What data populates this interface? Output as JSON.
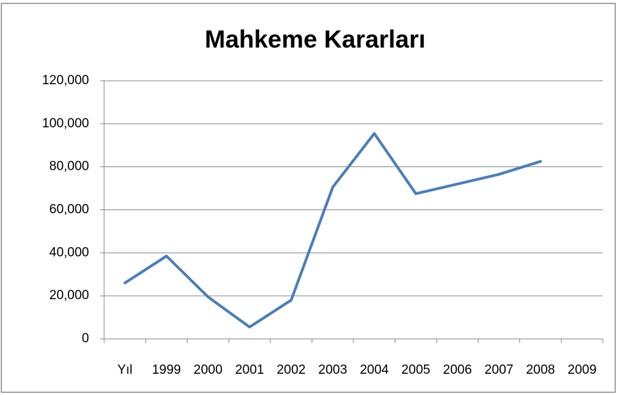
{
  "chart_data": {
    "type": "line",
    "title": "Mahkeme Kararları",
    "categories": [
      "Yıl",
      "1999",
      "2000",
      "2001",
      "2002",
      "2003",
      "2004",
      "2005",
      "2006",
      "2007",
      "2008",
      "2009"
    ],
    "series": [
      {
        "name": "Mahkeme Kararları",
        "color": "#4a7ebb",
        "values": [
          26000,
          38500,
          19500,
          5500,
          18000,
          70500,
          95500,
          67500,
          72000,
          76500,
          82500,
          null
        ]
      }
    ],
    "ylim": [
      0,
      120000
    ],
    "yticks": [
      0,
      {
        "value": 20000,
        "label": "20,000"
      },
      {
        "value": 40000,
        "label": "40,000"
      },
      {
        "value": 60000,
        "label": "60,000"
      },
      {
        "value": 80000,
        "label": "80,000"
      },
      {
        "value": 100000,
        "label": "100,000"
      },
      {
        "value": 120000,
        "label": "120,000"
      }
    ],
    "grid": true
  }
}
